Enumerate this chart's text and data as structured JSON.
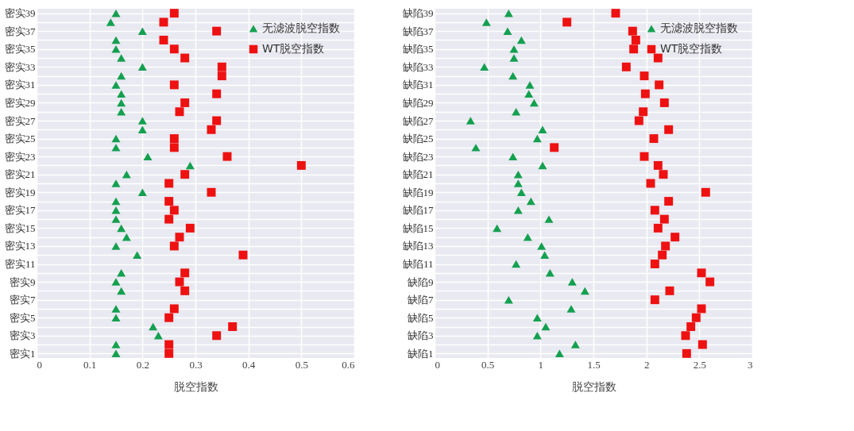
{
  "chart_data": [
    {
      "type": "scatter",
      "orientation": "horizontal",
      "xlabel": "脱空指数",
      "categories": [
        "密实39",
        null,
        "密实37",
        null,
        "密实35",
        null,
        "密实33",
        null,
        "密实31",
        null,
        "密实29",
        null,
        "密实27",
        null,
        "密实25",
        null,
        "密实23",
        null,
        "密实21",
        null,
        "密实19",
        null,
        "密实17",
        null,
        "密实15",
        null,
        "密实13",
        null,
        "密实11",
        null,
        "密实9",
        null,
        "密实7",
        null,
        "密实5",
        null,
        "密实3",
        null,
        "密实1"
      ],
      "xlim": [
        0,
        0.6
      ],
      "xticks": [
        0,
        0.1,
        0.2,
        0.3,
        0.4,
        0.5,
        0.6
      ],
      "grid": true,
      "legend": "top right",
      "series": [
        {
          "name": "无滤波脱空指数",
          "color": "#14a050",
          "marker": "triangle",
          "values": [
            0.15,
            0.14,
            0.2,
            0.15,
            0.15,
            0.16,
            0.2,
            0.16,
            0.15,
            0.16,
            0.16,
            0.16,
            0.2,
            0.2,
            0.15,
            0.15,
            0.21,
            0.29,
            0.17,
            0.15,
            0.2,
            0.15,
            0.15,
            0.15,
            0.16,
            0.17,
            0.15,
            0.19,
            null,
            0.16,
            0.15,
            0.16,
            null,
            0.15,
            0.15,
            0.22,
            0.23,
            0.15,
            0.15
          ]
        },
        {
          "name": "WT脱空指数",
          "color": "#ee1111",
          "marker": "square",
          "values": [
            0.26,
            0.24,
            0.34,
            0.24,
            0.26,
            0.28,
            0.35,
            0.35,
            0.26,
            0.34,
            0.28,
            0.27,
            0.34,
            0.33,
            0.26,
            0.26,
            0.36,
            0.5,
            0.28,
            0.25,
            0.33,
            0.25,
            0.26,
            0.25,
            0.29,
            0.27,
            0.26,
            0.39,
            null,
            0.28,
            0.27,
            0.28,
            null,
            0.26,
            0.25,
            0.37,
            0.34,
            0.25,
            0.25
          ]
        }
      ]
    },
    {
      "type": "scatter",
      "orientation": "horizontal",
      "xlabel": "脱空指数",
      "categories": [
        "缺陷39",
        null,
        "缺陷37",
        null,
        "缺陷35",
        null,
        "缺陷33",
        null,
        "缺陷31",
        null,
        "缺陷29",
        null,
        "缺陷27",
        null,
        "缺陷25",
        null,
        "缺陷23",
        null,
        "缺陷21",
        null,
        "缺陷19",
        null,
        "缺陷17",
        null,
        "缺陷15",
        null,
        "缺陷13",
        null,
        "缺陷11",
        null,
        "缺陷9",
        null,
        "缺陷7",
        null,
        "缺陷5",
        null,
        "缺陷3",
        null,
        "缺陷1"
      ],
      "xlim": [
        0,
        3
      ],
      "xticks": [
        0,
        0.5,
        1,
        1.5,
        2,
        2.5,
        3
      ],
      "grid": true,
      "legend": "top right",
      "series": [
        {
          "name": "无滤波脱空指数",
          "color": "#14a050",
          "marker": "triangle",
          "values": [
            0.7,
            0.49,
            0.69,
            0.82,
            0.75,
            0.75,
            0.47,
            0.74,
            0.9,
            0.89,
            0.94,
            0.77,
            0.34,
            1.02,
            0.97,
            0.39,
            0.74,
            1.02,
            0.79,
            0.79,
            0.82,
            0.91,
            0.79,
            1.08,
            0.59,
            0.88,
            1.01,
            1.04,
            0.77,
            1.09,
            1.3,
            1.42,
            0.7,
            1.29,
            0.97,
            1.05,
            0.97,
            1.33,
            1.18
          ]
        },
        {
          "name": "WT脱空指数",
          "color": "#ee1111",
          "marker": "square",
          "values": [
            1.71,
            1.25,
            1.87,
            1.9,
            1.88,
            2.11,
            1.81,
            1.98,
            2.12,
            1.99,
            2.17,
            1.97,
            1.93,
            2.21,
            2.07,
            1.13,
            1.98,
            2.11,
            2.16,
            2.04,
            2.56,
            2.21,
            2.08,
            2.17,
            2.11,
            2.27,
            2.18,
            2.15,
            2.08,
            2.52,
            2.6,
            2.22,
            2.08,
            2.52,
            2.47,
            2.42,
            2.37,
            2.53,
            2.38
          ]
        }
      ]
    }
  ]
}
